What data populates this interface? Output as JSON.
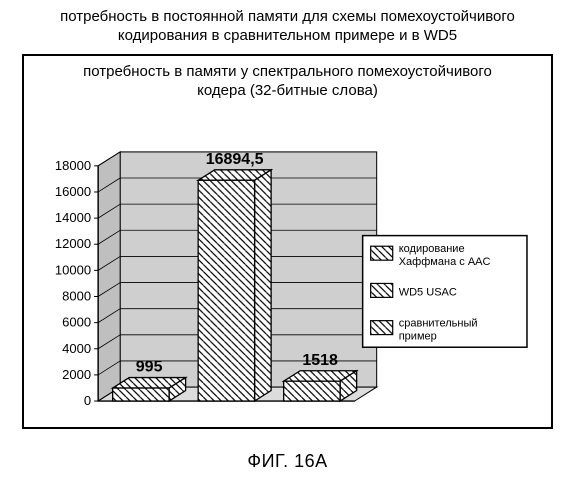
{
  "outer_title_line1": "потребность в постоянной памяти для схемы помехоустойчивого",
  "outer_title_line2": "кодирования в сравнительном примере и в WD5",
  "panel_title_line1": "потребность в памяти у спектрального помехоустойчивого",
  "panel_title_line2": "кодера (32-битные слова)",
  "fig_caption": "ФИГ. 16А",
  "chart": {
    "type": "bar-3d",
    "categories": [
      "кодирование Хаффмана с AAC",
      "WD5 USAC",
      "сравнительный пример"
    ],
    "values": [
      995,
      16894.5,
      1518
    ],
    "value_labels": [
      "995",
      "16894,5",
      "1518"
    ],
    "bar_fill": "#ffffff",
    "bar_stroke": "#000000",
    "hatch": {
      "style": "diagonal-lines",
      "slope": "backslash",
      "spacing": 7,
      "stroke_width": 1.2,
      "color": "#000000"
    },
    "floor_fill": "#dcdcdc",
    "back_wall_fill": "#cfcfcf",
    "side_wall_fill": "#bfbfbf",
    "grid_color": "#000000",
    "axis_color": "#000000",
    "ylim": [
      0,
      18000
    ],
    "ytick_step": 2000,
    "yticks": [
      0,
      2000,
      4000,
      6000,
      8000,
      10000,
      12000,
      14000,
      16000,
      18000
    ],
    "label_fontsize": 13,
    "value_label_fontsize": 16,
    "value_label_weight": "bold",
    "legend_box_stroke": "#000000",
    "legend_fontsize": 11
  }
}
